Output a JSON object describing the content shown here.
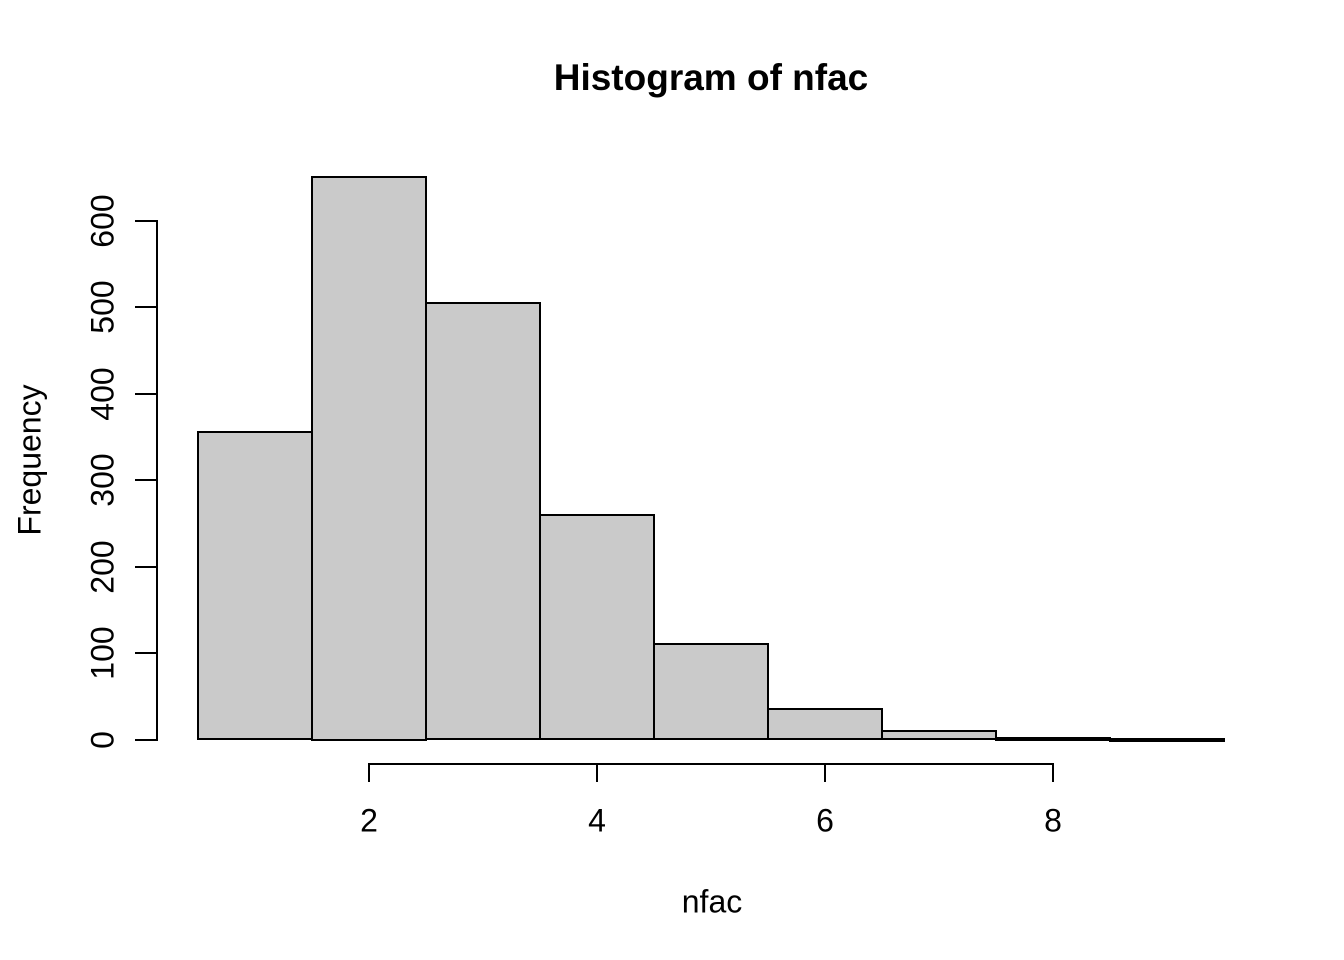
{
  "chart_data": {
    "type": "bar",
    "subtype": "histogram",
    "title": "Histogram of nfac",
    "xlabel": "nfac",
    "ylabel": "Frequency",
    "breaks": [
      0.5,
      1.5,
      2.5,
      3.5,
      4.5,
      5.5,
      6.5,
      7.5,
      8.5,
      9.5
    ],
    "bin_mids": [
      1,
      2,
      3,
      4,
      5,
      6,
      7,
      8,
      9
    ],
    "counts": [
      355,
      650,
      505,
      260,
      110,
      35,
      10,
      2,
      1
    ],
    "x_ticks": [
      2,
      4,
      6,
      8
    ],
    "y_ticks": [
      0,
      100,
      200,
      300,
      400,
      500,
      600
    ],
    "xlim": [
      0.5,
      9.5
    ],
    "ylim": [
      0,
      650
    ],
    "bar_fill": "#CACACA",
    "bar_border": "#000000",
    "axis_color": "#000000",
    "background": "#FFFFFF",
    "grid": false,
    "legend": false
  }
}
